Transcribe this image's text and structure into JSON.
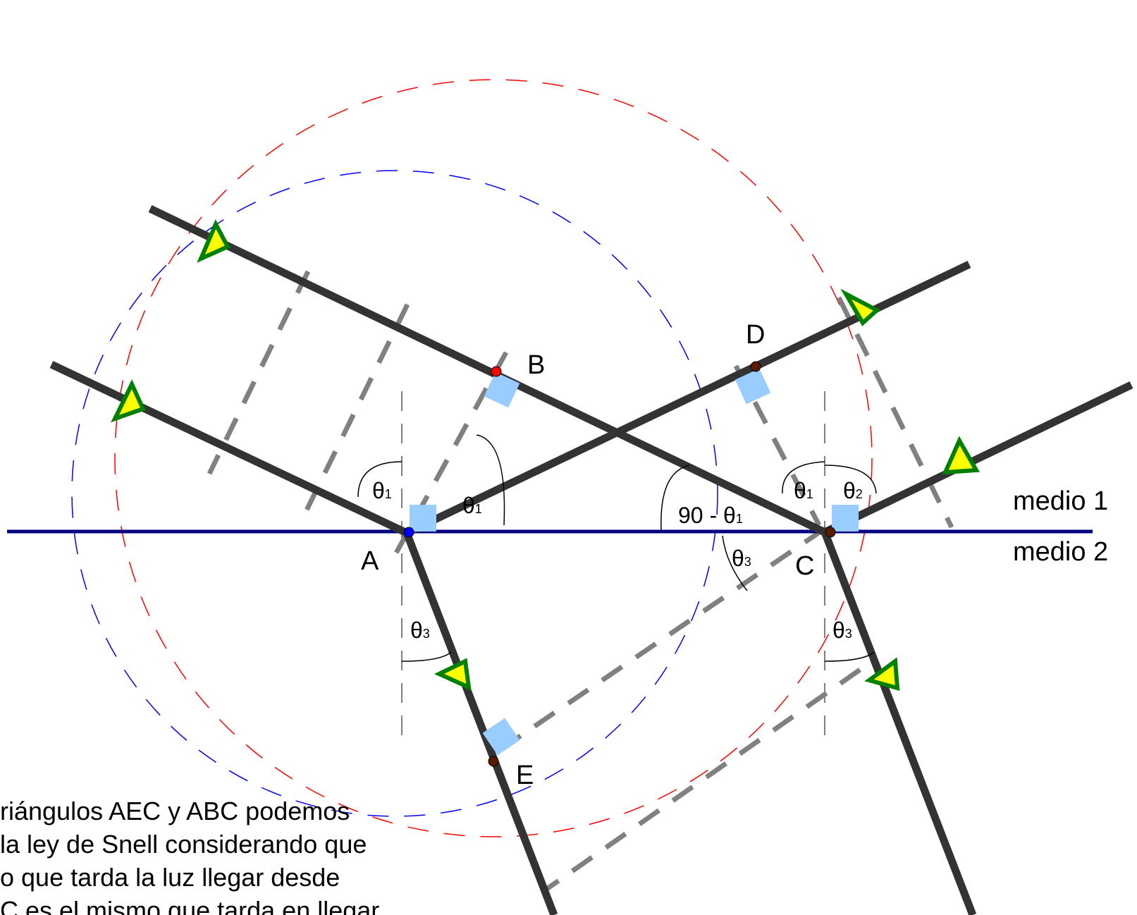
{
  "diagram": {
    "points": {
      "A": "A",
      "B": "B",
      "C": "C",
      "D": "D",
      "E": "E"
    },
    "media": {
      "top": "medio 1",
      "bottom": "medio 2"
    },
    "angles": {
      "theta": "θ",
      "sub1": "1",
      "sub2": "2",
      "sub3": "3",
      "complement_prefix": "90 - "
    },
    "caption_lines": [
      "riángulos AEC y ABC podemos",
      "la ley de Snell considerando que",
      "o que tarda la luz llegar desde",
      "C es el mismo que tarda en llegar"
    ],
    "colors": {
      "ray": "#333333",
      "interface": "#000080",
      "wavefront": "#808080",
      "circle_red": "#ff0000",
      "circle_blue": "#0000ff",
      "right_angle_marker": "#99ccff",
      "arrow_fill": "#ffff00",
      "arrow_stroke": "#008000",
      "point_A": "#0000ff",
      "point_B": "#ff0000",
      "point_other": "#5a1a00"
    }
  }
}
